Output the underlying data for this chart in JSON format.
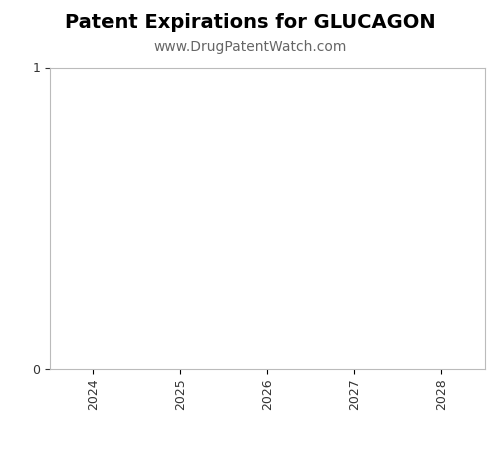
{
  "title": "Patent Expirations for GLUCAGON",
  "subtitle": "www.DrugPatentWatch.com",
  "title_fontsize": 14,
  "subtitle_fontsize": 10,
  "title_fontweight": "bold",
  "xlim": [
    2023.5,
    2028.5
  ],
  "ylim": [
    0,
    1
  ],
  "yticks": [
    0,
    1
  ],
  "xticks": [
    2024,
    2025,
    2026,
    2027,
    2028
  ],
  "xlabel": "",
  "ylabel": "",
  "background_color": "#ffffff",
  "plot_bg_color": "#ffffff",
  "spine_color": "#bbbbbb",
  "tick_color": "#333333",
  "tick_fontsize": 9,
  "grid": false
}
